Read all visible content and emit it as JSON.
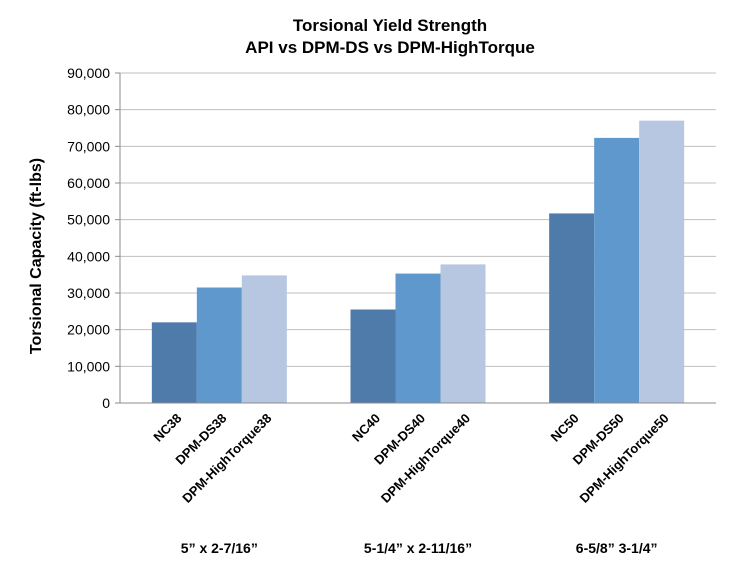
{
  "chart_data": {
    "type": "bar",
    "title": "Torsional Yield Strength",
    "subtitle": "API vs DPM-DS vs DPM-HighTorque",
    "ylabel": "Torsional Capacity (ft-lbs)",
    "xlabel": "",
    "ylim": [
      0,
      90000
    ],
    "yticks": [
      "0",
      "10,000",
      "20,000",
      "30,000",
      "40,000",
      "50,000",
      "60,000",
      "70,000",
      "80,000",
      "90,000"
    ],
    "grid": true,
    "legend": "none",
    "colors": [
      "#4f7bab",
      "#5f98cc",
      "#b7c6e1"
    ],
    "groups": [
      {
        "label": "5” x 2-7/16”",
        "bars": [
          {
            "name": "NC38",
            "value": 22000
          },
          {
            "name": "DPM-DS38",
            "value": 31500
          },
          {
            "name": "DPM-HighTorque38",
            "value": 34800
          }
        ]
      },
      {
        "label": "5-1/4” x 2-11/16”",
        "bars": [
          {
            "name": "NC40",
            "value": 25500
          },
          {
            "name": "DPM-DS40",
            "value": 35300
          },
          {
            "name": "DPM-HighTorque40",
            "value": 37800
          }
        ]
      },
      {
        "label": "6-5/8” 3-1/4”",
        "bars": [
          {
            "name": "NC50",
            "value": 51700
          },
          {
            "name": "DPM-DS50",
            "value": 72300
          },
          {
            "name": "DPM-HighTorque50",
            "value": 77000
          }
        ]
      }
    ]
  }
}
